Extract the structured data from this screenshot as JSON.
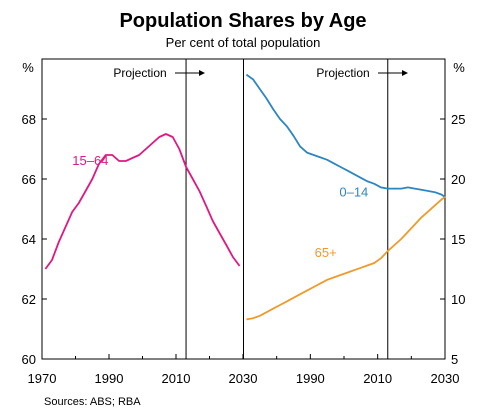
{
  "chart_data": {
    "type": "line",
    "title": "Population Shares by Age",
    "subtitle": "Per cent of total population",
    "source": "Sources: ABS; RBA",
    "left_unit": "%",
    "right_unit": "%",
    "projection_label": "Projection",
    "projection_start_year": 2013,
    "xlim": [
      1970,
      2030
    ],
    "x_ticks": [
      "1970",
      "1990",
      "2010",
      "2030"
    ],
    "panels": [
      {
        "name": "left",
        "ylim": [
          60,
          70
        ],
        "y_ticks": [
          "60",
          "62",
          "64",
          "66",
          "68"
        ],
        "series": [
          {
            "name": "15–64",
            "color": "#e0187f",
            "x": [
              1971,
              1973,
              1975,
              1977,
              1979,
              1981,
              1983,
              1985,
              1987,
              1989,
              1991,
              1993,
              1995,
              1997,
              1999,
              2001,
              2003,
              2005,
              2007,
              2009,
              2011,
              2013,
              2015,
              2017,
              2019,
              2021,
              2023,
              2025,
              2027,
              2029
            ],
            "y": [
              63.0,
              63.3,
              63.9,
              64.4,
              64.9,
              65.2,
              65.6,
              66.0,
              66.5,
              66.8,
              66.8,
              66.6,
              66.6,
              66.7,
              66.8,
              67.0,
              67.2,
              67.4,
              67.5,
              67.4,
              67.0,
              66.4,
              66.0,
              65.6,
              65.1,
              64.6,
              64.2,
              63.8,
              63.4,
              63.1
            ]
          }
        ]
      },
      {
        "name": "right",
        "ylim": [
          5,
          30
        ],
        "y_ticks": [
          "5",
          "10",
          "15",
          "20",
          "25"
        ],
        "series": [
          {
            "name": "0–14",
            "color": "#2e86c1",
            "x": [
              1971,
              1973,
              1975,
              1977,
              1979,
              1981,
              1983,
              1985,
              1987,
              1989,
              1991,
              1993,
              1995,
              1997,
              1999,
              2001,
              2003,
              2005,
              2007,
              2009,
              2011,
              2013,
              2015,
              2017,
              2019,
              2021,
              2023,
              2025,
              2027,
              2029,
              2030
            ],
            "y": [
              28.7,
              28.3,
              27.5,
              26.7,
              25.8,
              25.0,
              24.4,
              23.6,
              22.7,
              22.2,
              22.0,
              21.8,
              21.6,
              21.3,
              21.0,
              20.7,
              20.4,
              20.1,
              19.8,
              19.6,
              19.3,
              19.2,
              19.2,
              19.2,
              19.3,
              19.2,
              19.1,
              19.0,
              18.9,
              18.7,
              18.5
            ]
          },
          {
            "name": "65+",
            "color": "#ef9a2b",
            "x": [
              1971,
              1973,
              1975,
              1977,
              1979,
              1981,
              1983,
              1985,
              1987,
              1989,
              1991,
              1993,
              1995,
              1997,
              1999,
              2001,
              2003,
              2005,
              2007,
              2009,
              2011,
              2013,
              2015,
              2017,
              2019,
              2021,
              2023,
              2025,
              2027,
              2029,
              2030
            ],
            "y": [
              8.3,
              8.4,
              8.6,
              8.9,
              9.2,
              9.5,
              9.8,
              10.1,
              10.4,
              10.7,
              11.0,
              11.3,
              11.6,
              11.8,
              12.0,
              12.2,
              12.4,
              12.6,
              12.8,
              13.0,
              13.4,
              14.0,
              14.5,
              15.0,
              15.6,
              16.2,
              16.8,
              17.3,
              17.8,
              18.3,
              18.5
            ]
          }
        ]
      }
    ]
  }
}
